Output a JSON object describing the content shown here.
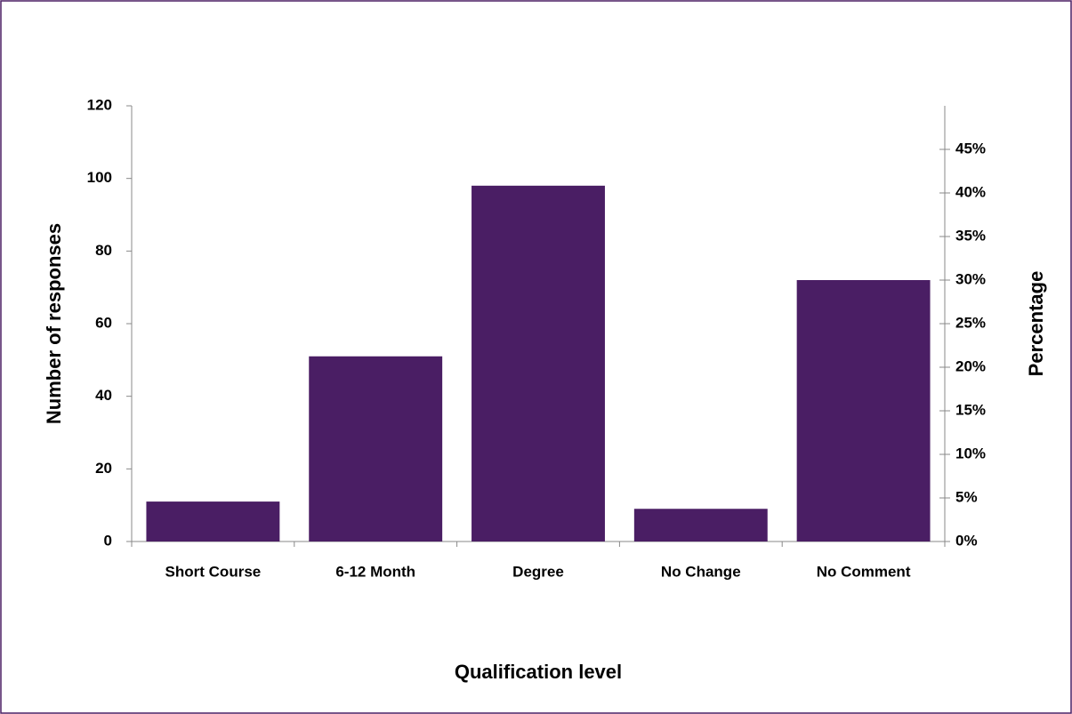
{
  "chart_data": {
    "type": "bar",
    "xlabel": "Qualification level",
    "ylabel": "Number of responses",
    "y2label": "Percentage",
    "categories": [
      "Short Course",
      "6-12 Month",
      "Degree",
      "No Change",
      "No Comment"
    ],
    "values": [
      11,
      51,
      98,
      9,
      72
    ],
    "color": "#4a1e64",
    "ylim": [
      0,
      120
    ],
    "yticks": [
      0,
      20,
      40,
      60,
      80,
      100,
      120
    ],
    "y2lim": [
      0,
      50
    ],
    "y2ticks": [
      {
        "value": 0,
        "label": "0%"
      },
      {
        "value": 5,
        "label": "5%"
      },
      {
        "value": 10,
        "label": "10%"
      },
      {
        "value": 15,
        "label": "15%"
      },
      {
        "value": 20,
        "label": "20%"
      },
      {
        "value": 25,
        "label": "25%"
      },
      {
        "value": 30,
        "label": "30%"
      },
      {
        "value": 35,
        "label": "35%"
      },
      {
        "value": 40,
        "label": "40%"
      },
      {
        "value": 45,
        "label": "45%"
      }
    ],
    "grid": false
  }
}
